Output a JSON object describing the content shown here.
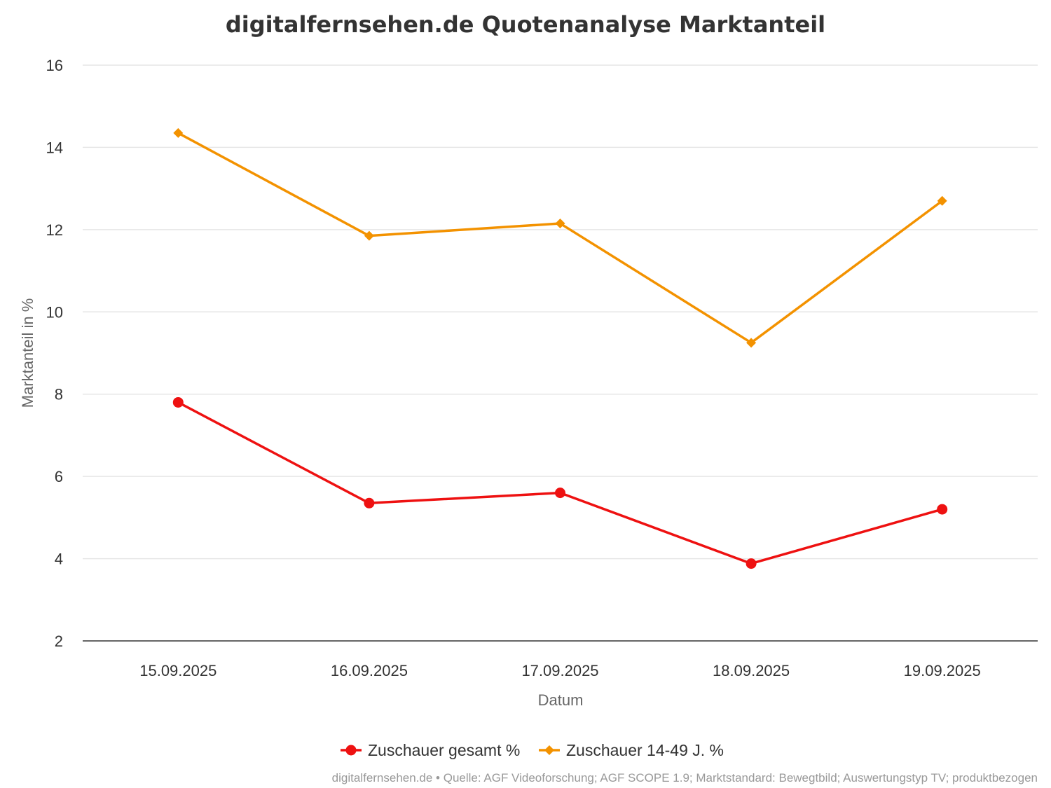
{
  "chart_data": {
    "type": "line",
    "title": "digitalfernsehen.de Quotenanalyse Marktanteil",
    "xlabel": "Datum",
    "ylabel": "Marktanteil in %",
    "categories": [
      "15.09.2025",
      "16.09.2025",
      "17.09.2025",
      "18.09.2025",
      "19.09.2025"
    ],
    "ylim": [
      2,
      16
    ],
    "yticks": [
      2,
      4,
      6,
      8,
      10,
      12,
      14,
      16
    ],
    "grid": true,
    "legend_position": "bottom",
    "series": [
      {
        "name": "Zuschauer gesamt %",
        "color": "#ee1111",
        "marker": "circle",
        "values": [
          7.8,
          5.35,
          5.6,
          3.88,
          5.2
        ]
      },
      {
        "name": "Zuschauer 14-49 J. %",
        "color": "#f39200",
        "marker": "diamond",
        "values": [
          14.35,
          11.85,
          12.15,
          9.25,
          12.7
        ]
      }
    ],
    "credits": "digitalfernsehen.de • Quelle: AGF Videoforschung; AGF SCOPE 1.9; Marktstandard: Bewegtbild; Auswertungstyp TV; produktbezogen"
  }
}
